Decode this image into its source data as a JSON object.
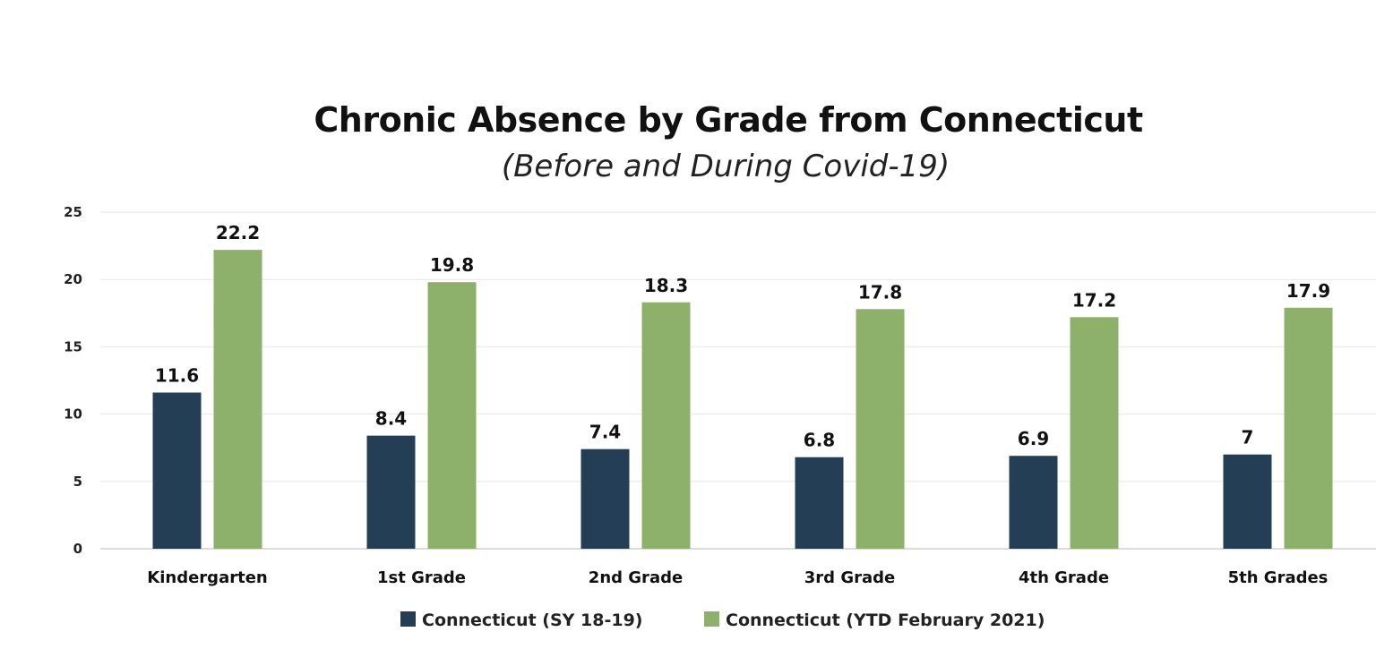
{
  "chart_data": {
    "type": "bar",
    "title": "Chronic Absence by Grade from Connecticut",
    "subtitle": "(Before and During Covid-19)",
    "categories": [
      "Kindergarten",
      "1st Grade",
      "2nd Grade",
      "3rd Grade",
      "4th Grade",
      "5th Grades"
    ],
    "series": [
      {
        "name": "Connecticut (SY 18-19)",
        "color": "#243f55",
        "values": [
          11.6,
          8.4,
          7.4,
          6.8,
          6.9,
          7
        ],
        "labels": [
          "11.6",
          "8.4",
          "7.4",
          "6.8",
          "6.9",
          "7"
        ]
      },
      {
        "name": "Connecticut (YTD February 2021)",
        "color": "#8db16a",
        "values": [
          22.2,
          19.8,
          18.3,
          17.8,
          17.2,
          17.9
        ],
        "labels": [
          "22.2",
          "19.8",
          "18.3",
          "17.8",
          "17.2",
          "17.9"
        ]
      }
    ],
    "ylim": [
      0,
      25
    ],
    "yticks": [
      0,
      5,
      10,
      15,
      20,
      25
    ],
    "ytick_labels": [
      "0",
      "5",
      "10",
      "15",
      "20",
      "25"
    ],
    "grid": true,
    "legend": "bottom-center",
    "xlabel": "",
    "ylabel": ""
  }
}
